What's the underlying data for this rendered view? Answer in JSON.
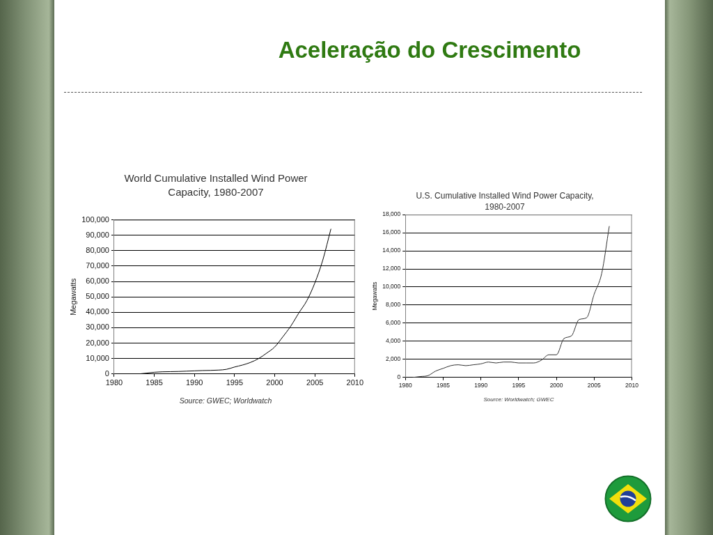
{
  "chart_data": [
    {
      "type": "other",
      "title": "Aceleração do Crescimento"
    },
    {
      "type": "line",
      "title": "World Cumulative Installed Wind Power Capacity, 1980-2007",
      "ylabel": "Megawatts",
      "annotations": [
        "Source: GWEC; Worldwatch"
      ],
      "x": [
        1983,
        1984,
        1985,
        1986,
        1987,
        1988,
        1989,
        1990,
        1991,
        1992,
        1993,
        1994,
        1995,
        1996,
        1997,
        1998,
        1999,
        2000,
        2001,
        2002,
        2003,
        2004,
        2005,
        2006,
        2007
      ],
      "series": [
        {
          "color": "#000000",
          "values": [
            0,
            500,
            1100,
            1400,
            1500,
            1600,
            1800,
            2000,
            2200,
            2300,
            2500,
            3000,
            4500,
            5800,
            7500,
            10000,
            13500,
            17500,
            24000,
            31000,
            39500,
            47500,
            59000,
            74000,
            94000
          ]
        }
      ],
      "xlim": [
        1980,
        2010
      ],
      "xticks": [
        1980,
        1985,
        1990,
        1995,
        2000,
        2005,
        2010
      ],
      "ylim": [
        0,
        100000
      ],
      "yticks": [
        0,
        {
          "value": 10000,
          "label": "10,000"
        },
        {
          "value": 20000,
          "label": "20,000"
        },
        {
          "value": 30000,
          "label": "30,000"
        },
        {
          "value": 40000,
          "label": "40,000"
        },
        {
          "value": 50000,
          "label": "50,000"
        },
        {
          "value": 60000,
          "label": "60,000"
        },
        {
          "value": 70000,
          "label": "70,000"
        },
        {
          "value": 80000,
          "label": "80,000"
        },
        {
          "value": 90000,
          "label": "90,000"
        },
        {
          "value": 100000,
          "label": "100,000"
        }
      ],
      "grid": "y",
      "marker": "none",
      "line_style": "solid"
    },
    {
      "type": "line",
      "title": "U.S. Cumulative Installed Wind Power Capacity, 1980-2007",
      "ylabel": "Megawatts",
      "annotations": [
        "Source: Worldwatch; GWEC"
      ],
      "x": [
        1981,
        1982,
        1983,
        1984,
        1985,
        1986,
        1987,
        1988,
        1989,
        1990,
        1991,
        1992,
        1993,
        1994,
        1995,
        1996,
        1997,
        1998,
        1999,
        2000,
        2001,
        2002,
        2003,
        2004,
        2005,
        2006,
        2007
      ],
      "series": [
        {
          "color": "#333333",
          "values": [
            0,
            100,
            200,
            700,
            1000,
            1300,
            1400,
            1300,
            1400,
            1500,
            1700,
            1600,
            1700,
            1700,
            1600,
            1600,
            1600,
            1900,
            2500,
            2500,
            4300,
            4600,
            6400,
            6600,
            9200,
            11500,
            16700
          ]
        }
      ],
      "xlim": [
        1980,
        2010
      ],
      "xticks": [
        1980,
        1985,
        1990,
        1995,
        2000,
        2005,
        2010
      ],
      "ylim": [
        0,
        18000
      ],
      "yticks": [
        0,
        {
          "value": 2000,
          "label": "2,000"
        },
        {
          "value": 4000,
          "label": "4,000"
        },
        {
          "value": 6000,
          "label": "6,000"
        },
        {
          "value": 8000,
          "label": "8,000"
        },
        {
          "value": 10000,
          "label": "10,000"
        },
        {
          "value": 12000,
          "label": "12,000"
        },
        {
          "value": 14000,
          "label": "14,000"
        },
        {
          "value": 16000,
          "label": "16,000"
        },
        {
          "value": 18000,
          "label": "18,000"
        }
      ],
      "grid": "y",
      "marker": "none",
      "line_style": "solid"
    }
  ]
}
